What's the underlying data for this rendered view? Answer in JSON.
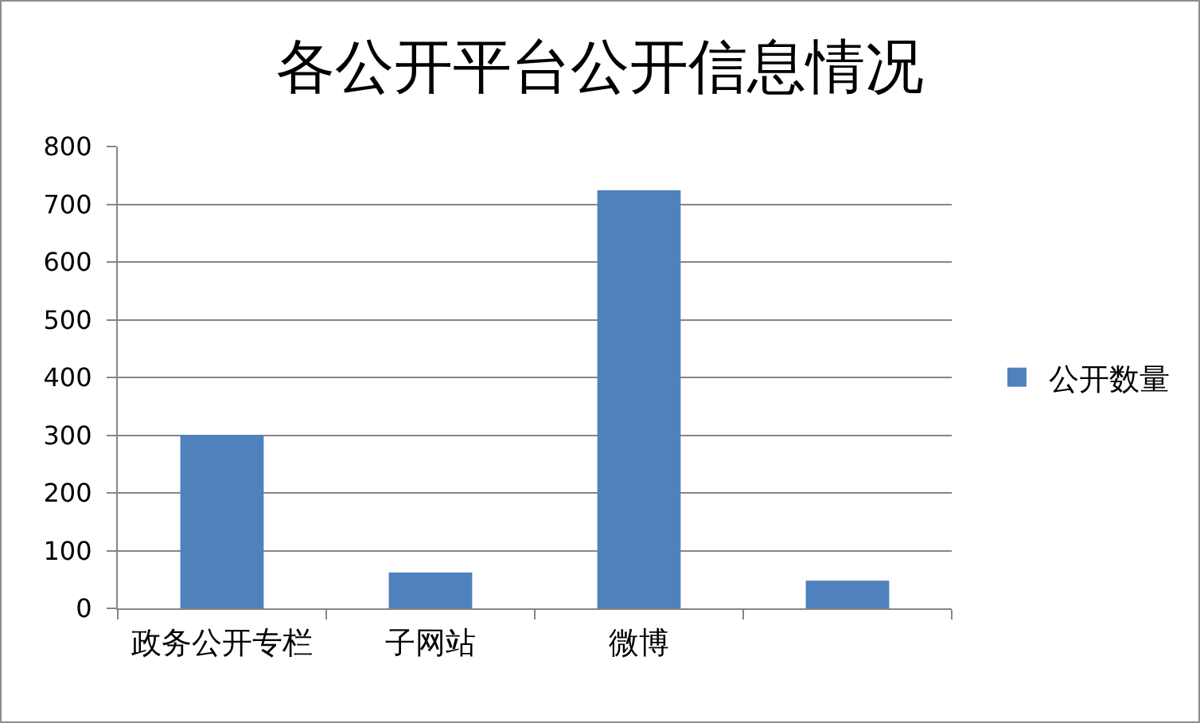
{
  "chart_data": {
    "type": "bar",
    "title": "各公开平台公开信息情况",
    "categories": [
      "政务公开专栏",
      "子网站",
      "微博",
      null
    ],
    "series": [
      {
        "name": "公开数量",
        "color": "#4f81bd",
        "values": [
          300,
          62,
          724,
          48
        ]
      }
    ],
    "ylim": [
      0,
      800
    ],
    "yticks": [
      0,
      100,
      200,
      300,
      400,
      500,
      600,
      700,
      800
    ],
    "grid": "y",
    "legend": "right"
  }
}
